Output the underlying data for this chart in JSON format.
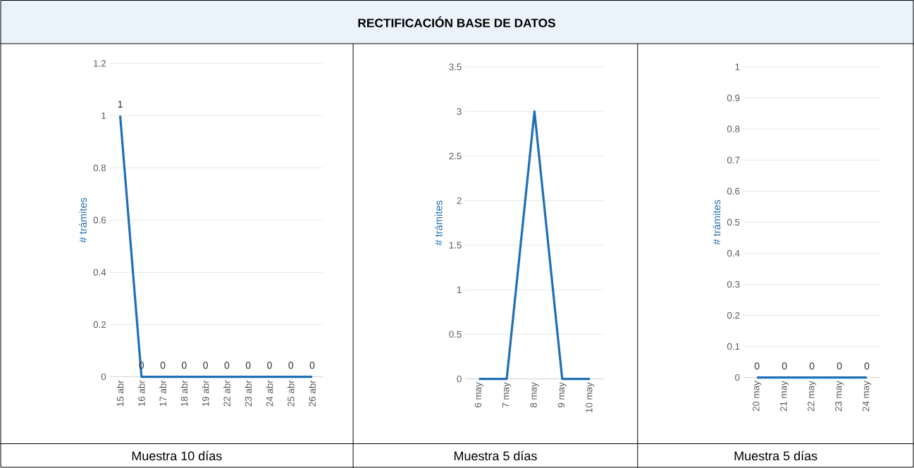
{
  "chart_data": [
    {
      "type": "line",
      "xlabel": "Muestra 10 días",
      "ylabel": "# trámites",
      "categories": [
        "15 abr",
        "16 abr",
        "17 abr",
        "18 abr",
        "19 abr",
        "22 abr",
        "23 abr",
        "24 abr",
        "25 abr",
        "26 abr"
      ],
      "values": [
        1,
        0,
        0,
        0,
        0,
        0,
        0,
        0,
        0,
        0
      ],
      "color": "#1f6fb5",
      "ylim": [
        0,
        1.2
      ],
      "yticks": [
        0,
        0.2,
        0.4,
        0.6,
        0.8,
        1,
        1.2
      ],
      "grid": "y",
      "data_labels": true
    },
    {
      "type": "line",
      "title": "RECTIFICACIÓN BASE DE DATOS",
      "xlabel": "Muestra 5 días",
      "ylabel": "# trámites",
      "categories": [
        "6 may",
        "7 may",
        "8 may",
        "9 may",
        "10 may"
      ],
      "values": [
        0,
        0,
        3,
        0,
        0
      ],
      "color": "#1f6fb5",
      "ylim": [
        0,
        3.5
      ],
      "yticks": [
        0,
        0.5,
        1,
        1.5,
        2,
        2.5,
        3,
        3.5
      ],
      "grid": "y"
    },
    {
      "type": "line",
      "xlabel": "Muestra 5 días",
      "ylabel": "# trámites",
      "categories": [
        "20 may",
        "21 may",
        "22 may",
        "23 may",
        "24 may"
      ],
      "values": [
        0,
        0,
        0,
        0,
        0
      ],
      "color": "#1f6fb5",
      "ylim": [
        0,
        1
      ],
      "yticks": [
        0,
        0.1,
        0.2,
        0.3,
        0.4,
        0.5,
        0.6,
        0.7,
        0.8,
        0.9,
        1
      ],
      "grid": "y",
      "data_labels": true
    }
  ]
}
